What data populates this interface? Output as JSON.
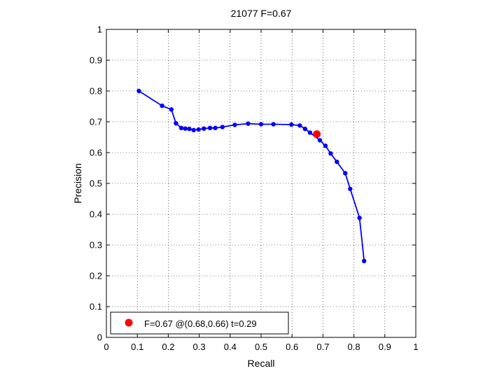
{
  "chart_data": {
    "type": "line",
    "title": "21077 F=0.67",
    "xlabel": "Recall",
    "ylabel": "Precision",
    "xlim": [
      0,
      1
    ],
    "ylim": [
      0,
      1
    ],
    "grid": true,
    "xticks": [
      "0",
      "0.1",
      "0.2",
      "0.3",
      "0.4",
      "0.5",
      "0.6",
      "0.7",
      "0.8",
      "0.9",
      "1"
    ],
    "yticks": [
      "0",
      "0.1",
      "0.2",
      "0.3",
      "0.4",
      "0.5",
      "0.6",
      "0.7",
      "0.8",
      "0.9",
      "1"
    ],
    "series": [
      {
        "color": "#0000ff",
        "marker": "dot",
        "points": [
          [
            0.105,
            0.8
          ],
          [
            0.18,
            0.752
          ],
          [
            0.21,
            0.74
          ],
          [
            0.225,
            0.695
          ],
          [
            0.242,
            0.68
          ],
          [
            0.255,
            0.678
          ],
          [
            0.268,
            0.677
          ],
          [
            0.282,
            0.673
          ],
          [
            0.298,
            0.675
          ],
          [
            0.315,
            0.678
          ],
          [
            0.335,
            0.68
          ],
          [
            0.352,
            0.68
          ],
          [
            0.375,
            0.683
          ],
          [
            0.415,
            0.69
          ],
          [
            0.458,
            0.694
          ],
          [
            0.5,
            0.692
          ],
          [
            0.54,
            0.692
          ],
          [
            0.598,
            0.691
          ],
          [
            0.625,
            0.688
          ],
          [
            0.642,
            0.677
          ],
          [
            0.658,
            0.665
          ],
          [
            0.69,
            0.64
          ],
          [
            0.708,
            0.622
          ],
          [
            0.725,
            0.597
          ],
          [
            0.745,
            0.57
          ],
          [
            0.772,
            0.533
          ],
          [
            0.788,
            0.482
          ],
          [
            0.818,
            0.388
          ],
          [
            0.833,
            0.248
          ]
        ]
      }
    ],
    "highlight": {
      "x": 0.68,
      "y": 0.66,
      "color": "#ff0000",
      "label": "F=0.67 @(0.68,0.66) t=0.29"
    },
    "legend_position": "bottom-left"
  }
}
